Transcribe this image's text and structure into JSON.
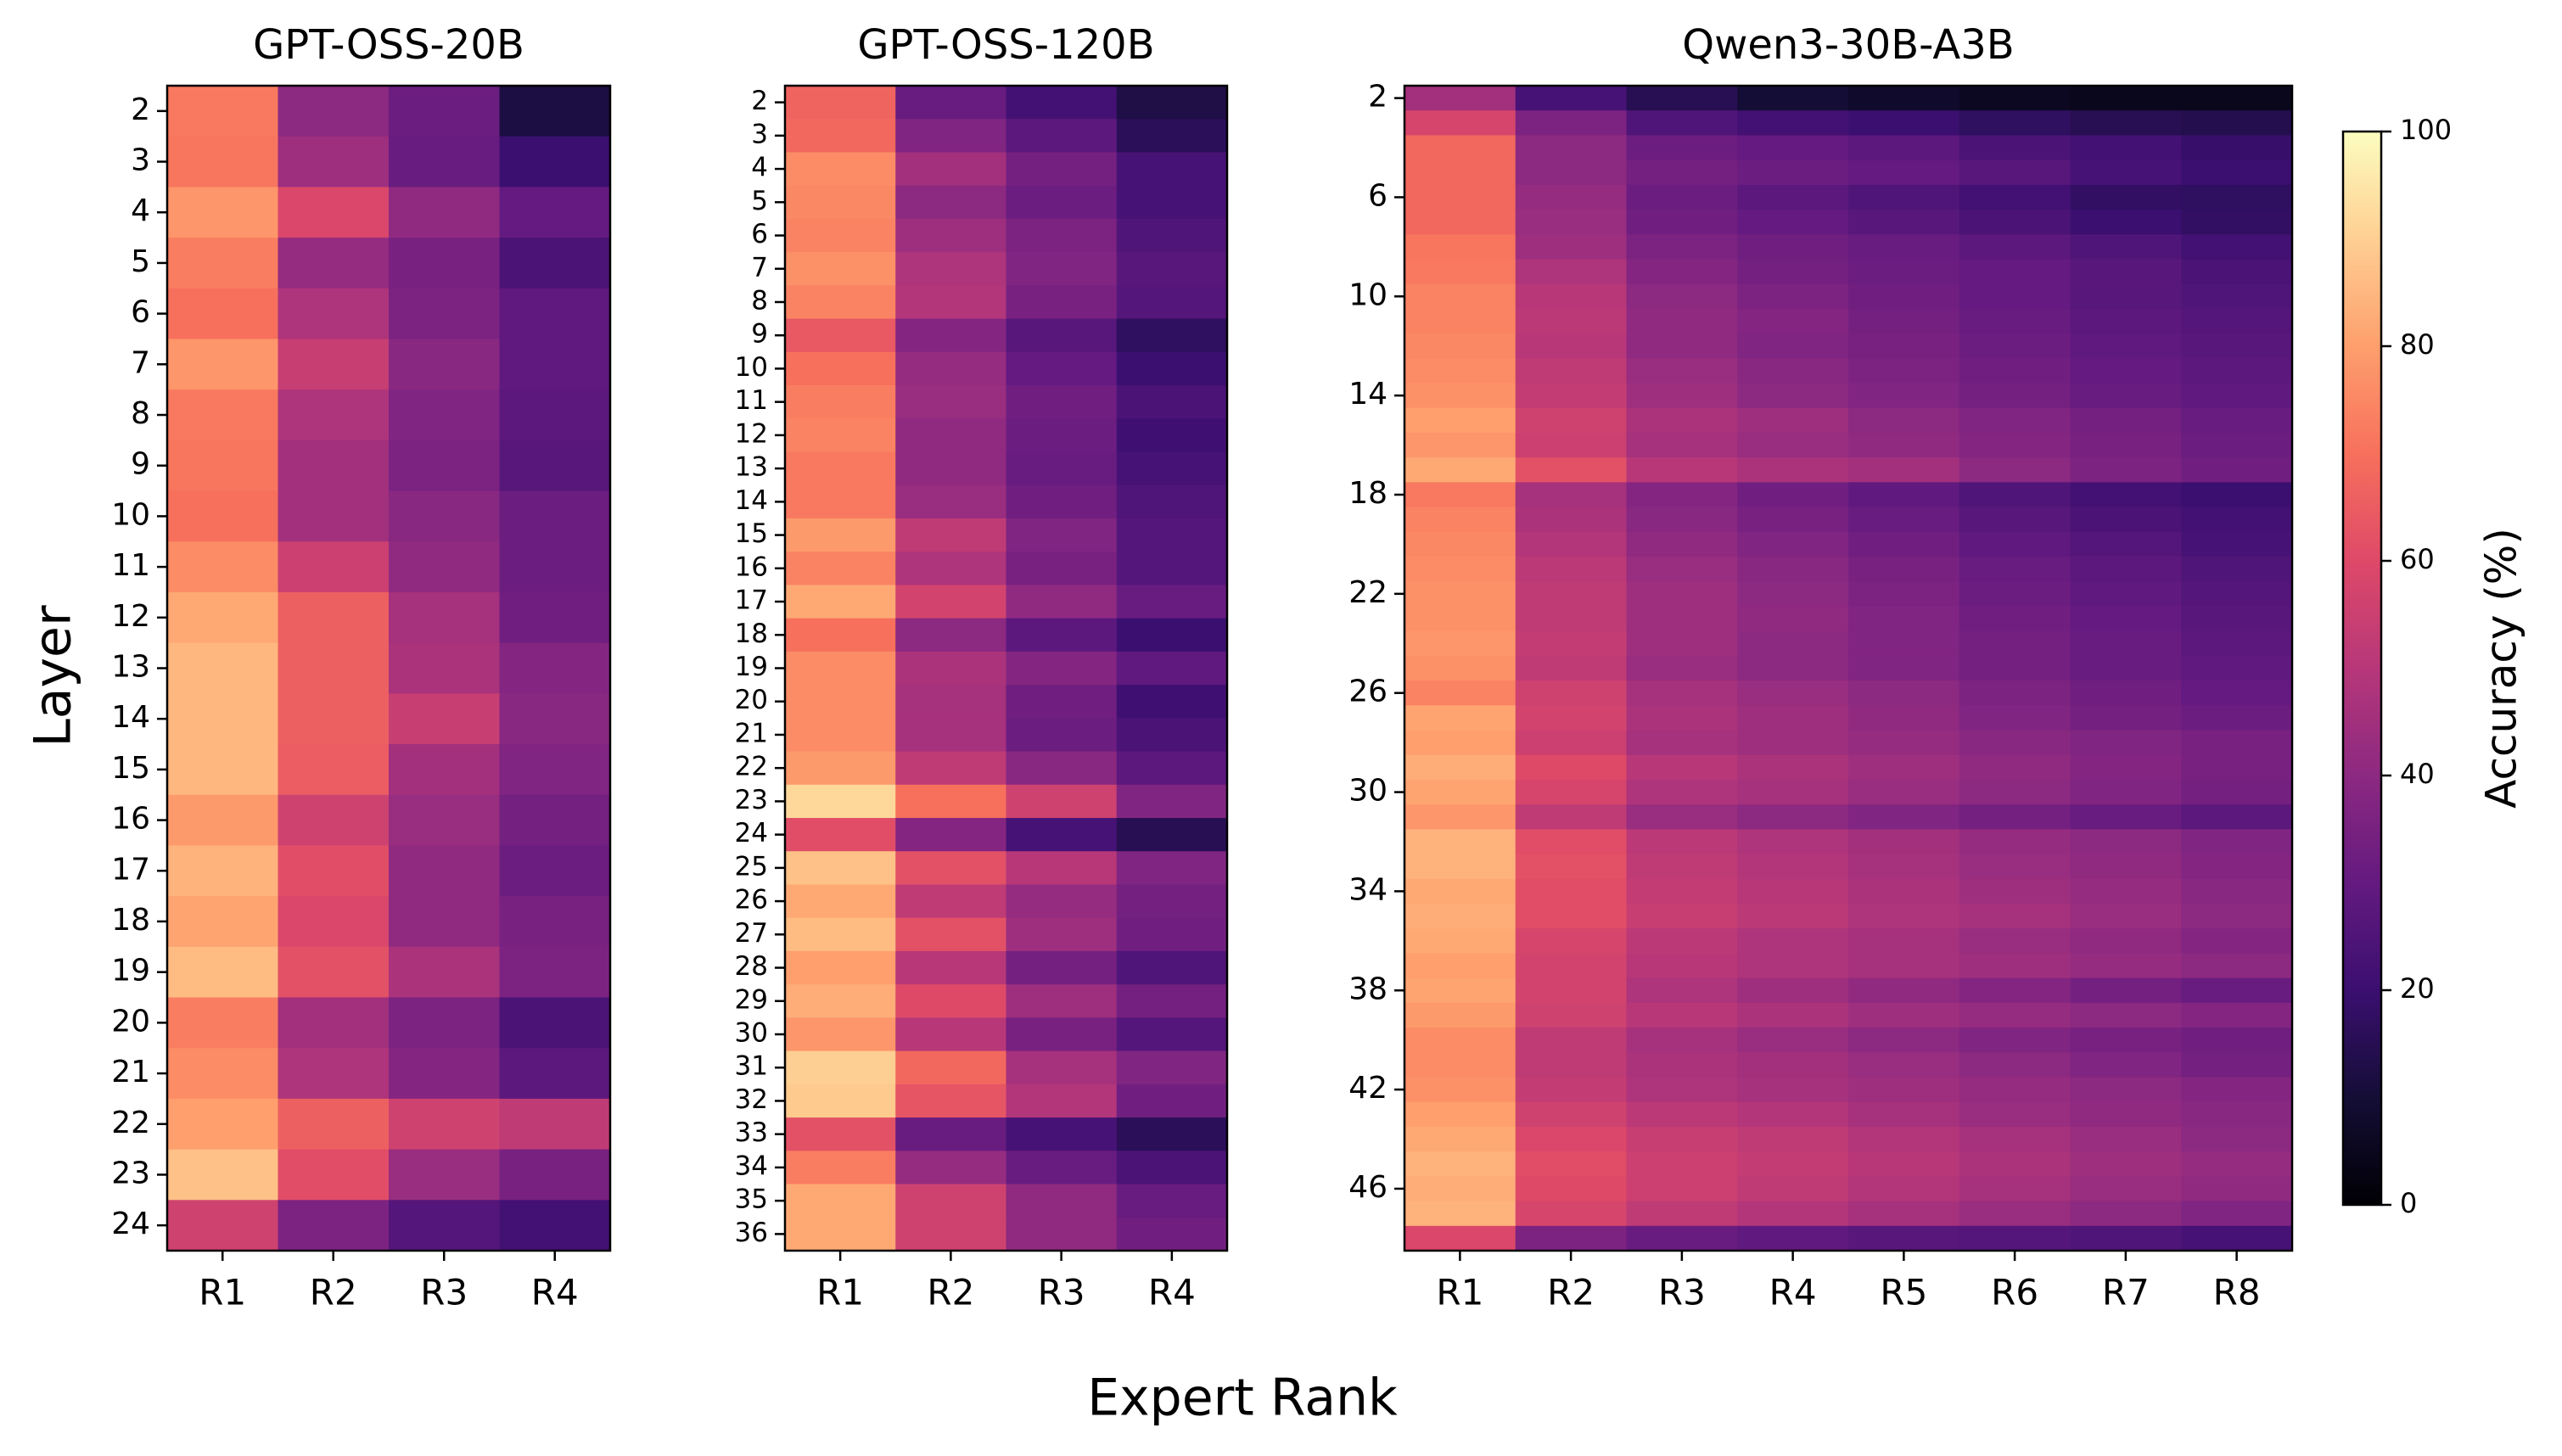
{
  "figure": {
    "ylabel": "Layer",
    "xlabel": "Expert Rank",
    "colorbar": {
      "label": "Accuracy (%)",
      "min": 0,
      "max": 100,
      "ticks": [
        0,
        20,
        40,
        60,
        80,
        100
      ],
      "colormap": "magma"
    }
  },
  "chart_data": [
    {
      "type": "heatmap",
      "title": "GPT-OSS-20B",
      "x_categories": [
        "R1",
        "R2",
        "R3",
        "R4"
      ],
      "y_categories": [
        2,
        3,
        4,
        5,
        6,
        7,
        8,
        9,
        10,
        11,
        12,
        13,
        14,
        15,
        16,
        17,
        18,
        19,
        20,
        21,
        22,
        23,
        24
      ],
      "y_tick_labels": [
        "2",
        "3",
        "4",
        "5",
        "6",
        "7",
        "8",
        "9",
        "10",
        "11",
        "12",
        "13",
        "14",
        "15",
        "16",
        "17",
        "18",
        "19",
        "20",
        "21",
        "22",
        "23",
        "24"
      ],
      "values": [
        [
          72,
          40,
          32,
          12
        ],
        [
          71,
          44,
          31,
          20
        ],
        [
          78,
          59,
          41,
          30
        ],
        [
          73,
          42,
          35,
          24
        ],
        [
          70,
          48,
          36,
          29
        ],
        [
          78,
          54,
          39,
          29
        ],
        [
          72,
          48,
          37,
          28
        ],
        [
          71,
          45,
          36,
          27
        ],
        [
          70,
          45,
          39,
          32
        ],
        [
          76,
          55,
          41,
          32
        ],
        [
          82,
          66,
          46,
          33
        ],
        [
          85,
          66,
          47,
          38
        ],
        [
          85,
          66,
          54,
          39
        ],
        [
          85,
          65,
          45,
          37
        ],
        [
          79,
          56,
          43,
          34
        ],
        [
          84,
          61,
          41,
          32
        ],
        [
          81,
          59,
          41,
          35
        ],
        [
          86,
          62,
          47,
          36
        ],
        [
          73,
          45,
          36,
          24
        ],
        [
          76,
          48,
          38,
          28
        ],
        [
          80,
          66,
          56,
          52
        ],
        [
          87,
          61,
          43,
          35
        ],
        [
          56,
          36,
          26,
          22
        ]
      ]
    },
    {
      "type": "heatmap",
      "title": "GPT-OSS-120B",
      "x_categories": [
        "R1",
        "R2",
        "R3",
        "R4"
      ],
      "y_categories": [
        2,
        3,
        4,
        5,
        6,
        7,
        8,
        9,
        10,
        11,
        12,
        13,
        14,
        15,
        16,
        17,
        18,
        19,
        20,
        21,
        22,
        23,
        24,
        25,
        26,
        27,
        28,
        29,
        30,
        31,
        32,
        33,
        34,
        35,
        36
      ],
      "y_tick_labels": [
        "2",
        "3",
        "4",
        "5",
        "6",
        "7",
        "8",
        "9",
        "10",
        "11",
        "12",
        "13",
        "14",
        "15",
        "16",
        "17",
        "18",
        "19",
        "20",
        "21",
        "22",
        "23",
        "24",
        "25",
        "26",
        "27",
        "28",
        "29",
        "30",
        "31",
        "32",
        "33",
        "34",
        "35",
        "36"
      ],
      "values": [
        [
          67,
          31,
          22,
          13
        ],
        [
          68,
          37,
          28,
          16
        ],
        [
          76,
          45,
          34,
          23
        ],
        [
          75,
          40,
          32,
          23
        ],
        [
          74,
          44,
          36,
          25
        ],
        [
          77,
          48,
          37,
          27
        ],
        [
          74,
          49,
          35,
          26
        ],
        [
          64,
          38,
          27,
          17
        ],
        [
          70,
          42,
          30,
          20
        ],
        [
          73,
          43,
          33,
          24
        ],
        [
          74,
          41,
          32,
          21
        ],
        [
          72,
          41,
          31,
          23
        ],
        [
          72,
          43,
          33,
          25
        ],
        [
          79,
          52,
          37,
          26
        ],
        [
          74,
          48,
          35,
          26
        ],
        [
          82,
          57,
          41,
          31
        ],
        [
          70,
          40,
          28,
          20
        ],
        [
          76,
          47,
          38,
          29
        ],
        [
          76,
          46,
          33,
          21
        ],
        [
          76,
          46,
          32,
          24
        ],
        [
          79,
          52,
          39,
          28
        ],
        [
          92,
          70,
          56,
          37
        ],
        [
          61,
          38,
          23,
          15
        ],
        [
          87,
          62,
          50,
          37
        ],
        [
          82,
          52,
          42,
          34
        ],
        [
          86,
          62,
          44,
          33
        ],
        [
          80,
          50,
          34,
          25
        ],
        [
          83,
          60,
          44,
          34
        ],
        [
          78,
          50,
          35,
          26
        ],
        [
          90,
          68,
          46,
          37
        ],
        [
          89,
          63,
          49,
          33
        ],
        [
          62,
          31,
          23,
          16
        ],
        [
          73,
          42,
          31,
          24
        ],
        [
          82,
          56,
          41,
          31
        ],
        [
          82,
          56,
          41,
          33
        ]
      ]
    },
    {
      "type": "heatmap",
      "title": "Qwen3-30B-A3B",
      "x_categories": [
        "R1",
        "R2",
        "R3",
        "R4",
        "R5",
        "R6",
        "R7",
        "R8"
      ],
      "y_categories": [
        2,
        3,
        4,
        5,
        6,
        7,
        8,
        9,
        10,
        11,
        12,
        13,
        14,
        15,
        16,
        17,
        18,
        19,
        20,
        21,
        22,
        23,
        24,
        25,
        26,
        27,
        28,
        29,
        30,
        31,
        32,
        33,
        34,
        35,
        36,
        37,
        38,
        39,
        40,
        41,
        42,
        43,
        44,
        45,
        46,
        47,
        48
      ],
      "y_tick_labels": [
        "2",
        "",
        "",
        "",
        "6",
        "",
        "",
        "",
        "10",
        "",
        "",
        "",
        "14",
        "",
        "",
        "",
        "18",
        "",
        "",
        "",
        "22",
        "",
        "",
        "",
        "26",
        "",
        "",
        "",
        "30",
        "",
        "",
        "",
        "34",
        "",
        "",
        "",
        "38",
        "",
        "",
        "",
        "42",
        "",
        "",
        "",
        "46",
        "",
        ""
      ],
      "values": [
        [
          45,
          23,
          15,
          10,
          8,
          6,
          5,
          5
        ],
        [
          58,
          36,
          25,
          22,
          20,
          17,
          15,
          14
        ],
        [
          68,
          40,
          32,
          30,
          28,
          24,
          22,
          19
        ],
        [
          68,
          40,
          34,
          32,
          30,
          27,
          23,
          20
        ],
        [
          68,
          42,
          32,
          28,
          25,
          22,
          18,
          17
        ],
        [
          68,
          43,
          33,
          30,
          27,
          24,
          20,
          18
        ],
        [
          71,
          44,
          36,
          33,
          31,
          28,
          25,
          22
        ],
        [
          72,
          48,
          38,
          34,
          32,
          30,
          27,
          24
        ],
        [
          74,
          50,
          40,
          36,
          33,
          30,
          27,
          25
        ],
        [
          74,
          51,
          41,
          38,
          34,
          31,
          28,
          26
        ],
        [
          75,
          50,
          41,
          37,
          35,
          32,
          29,
          27
        ],
        [
          76,
          52,
          43,
          39,
          36,
          33,
          30,
          28
        ],
        [
          77,
          53,
          44,
          40,
          37,
          34,
          31,
          29
        ],
        [
          80,
          56,
          47,
          44,
          40,
          37,
          34,
          31
        ],
        [
          78,
          55,
          46,
          43,
          41,
          38,
          35,
          32
        ],
        [
          82,
          62,
          50,
          47,
          45,
          40,
          36,
          33
        ],
        [
          72,
          46,
          38,
          33,
          29,
          25,
          22,
          20
        ],
        [
          74,
          47,
          39,
          35,
          31,
          27,
          24,
          22
        ],
        [
          75,
          49,
          41,
          37,
          33,
          29,
          26,
          23
        ],
        [
          76,
          51,
          43,
          39,
          35,
          31,
          28,
          25
        ],
        [
          77,
          52,
          44,
          40,
          36,
          32,
          29,
          26
        ],
        [
          77,
          52,
          44,
          41,
          37,
          33,
          30,
          27
        ],
        [
          78,
          53,
          44,
          40,
          37,
          34,
          31,
          28
        ],
        [
          77,
          52,
          43,
          40,
          37,
          34,
          31,
          29
        ],
        [
          74,
          56,
          46,
          43,
          40,
          36,
          33,
          30
        ],
        [
          81,
          57,
          47,
          44,
          41,
          37,
          34,
          32
        ],
        [
          80,
          55,
          46,
          44,
          42,
          39,
          37,
          35
        ],
        [
          83,
          60,
          50,
          47,
          44,
          41,
          38,
          35
        ],
        [
          81,
          58,
          48,
          46,
          43,
          40,
          37,
          34
        ],
        [
          78,
          52,
          43,
          40,
          37,
          34,
          31,
          28
        ],
        [
          84,
          61,
          51,
          48,
          45,
          42,
          40,
          37
        ],
        [
          84,
          62,
          52,
          49,
          46,
          43,
          41,
          38
        ],
        [
          82,
          61,
          53,
          50,
          47,
          44,
          42,
          39
        ],
        [
          83,
          61,
          54,
          51,
          48,
          46,
          43,
          40
        ],
        [
          82,
          58,
          51,
          48,
          46,
          43,
          41,
          38
        ],
        [
          80,
          57,
          50,
          48,
          46,
          44,
          42,
          40
        ],
        [
          81,
          57,
          48,
          44,
          41,
          38,
          34,
          31
        ],
        [
          79,
          56,
          50,
          47,
          44,
          42,
          40,
          38
        ],
        [
          76,
          52,
          46,
          43,
          40,
          37,
          35,
          33
        ],
        [
          76,
          52,
          47,
          45,
          43,
          40,
          37,
          34
        ],
        [
          77,
          53,
          48,
          46,
          44,
          42,
          40,
          38
        ],
        [
          80,
          56,
          51,
          49,
          46,
          43,
          41,
          39
        ],
        [
          82,
          59,
          54,
          52,
          49,
          46,
          43,
          40
        ],
        [
          84,
          61,
          55,
          53,
          50,
          47,
          44,
          42
        ],
        [
          83,
          60,
          55,
          52,
          49,
          46,
          43,
          41
        ],
        [
          84,
          58,
          52,
          49,
          46,
          43,
          40,
          37
        ],
        [
          59,
          36,
          31,
          29,
          27,
          26,
          25,
          23
        ]
      ]
    }
  ]
}
